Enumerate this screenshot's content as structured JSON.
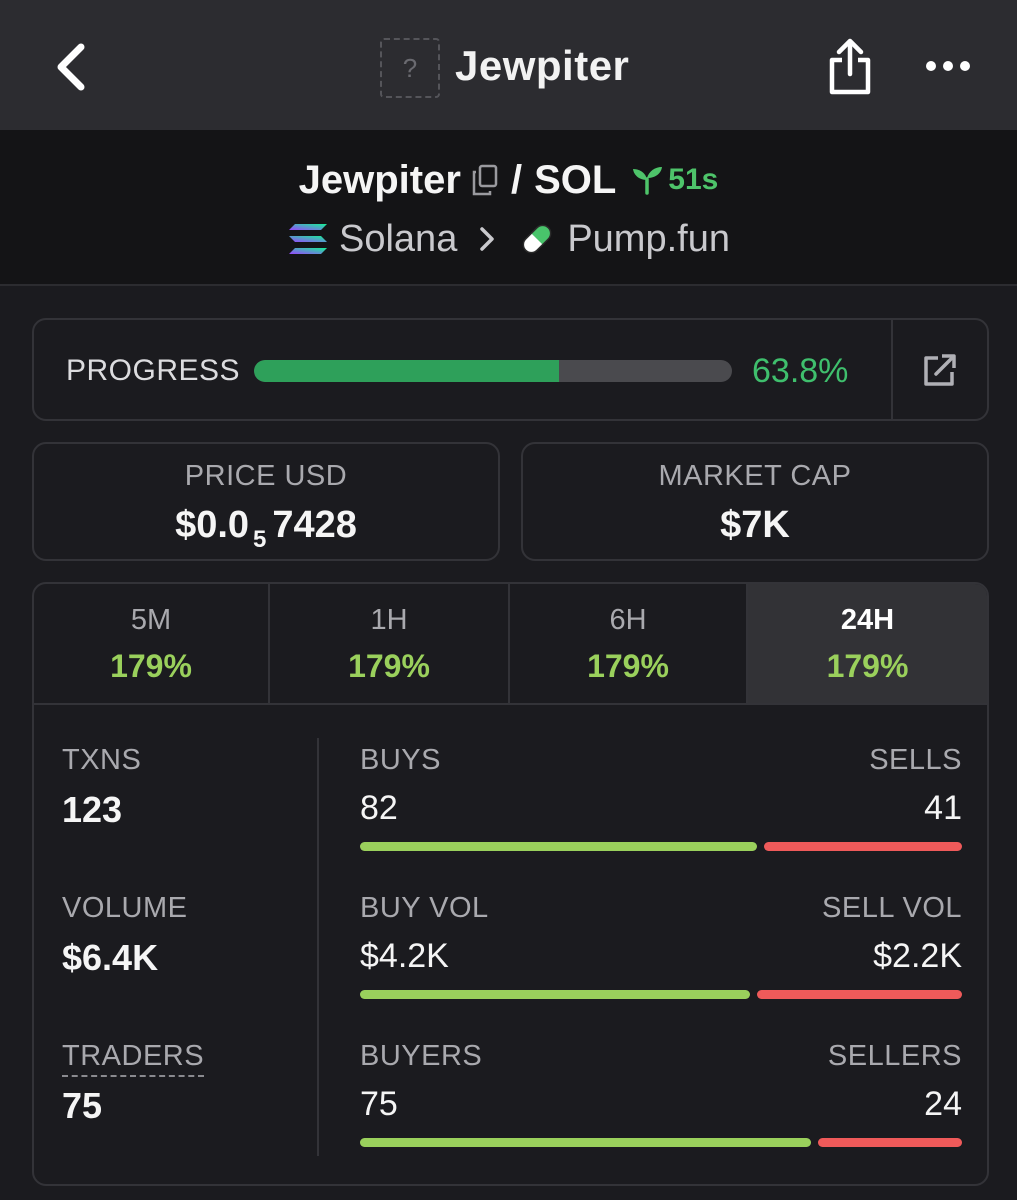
{
  "header": {
    "title": "Jewpiter",
    "thumb_placeholder": "?",
    "icons": {
      "back": "chevron-left-icon",
      "share": "share-icon",
      "more": "more-horizontal-icon"
    }
  },
  "pair": {
    "base": "Jewpiter",
    "separator": "/",
    "quote": "SOL",
    "age": "51s",
    "chain": "Solana",
    "dex": "Pump.fun"
  },
  "progress": {
    "label": "PROGRESS",
    "value_text": "63.8%",
    "percent": 63.8
  },
  "price": {
    "label": "PRICE USD",
    "prefix": "$0.0",
    "zeros": "5",
    "digits": "7428"
  },
  "market_cap": {
    "label": "MARKET CAP",
    "value": "$7K"
  },
  "tabs": [
    {
      "label": "5M",
      "value": "179%",
      "active": false
    },
    {
      "label": "1H",
      "value": "179%",
      "active": false
    },
    {
      "label": "6H",
      "value": "179%",
      "active": false
    },
    {
      "label": "24H",
      "value": "179%",
      "active": true
    }
  ],
  "stats": {
    "txns": {
      "label": "TXNS",
      "value": "123"
    },
    "volume": {
      "label": "VOLUME",
      "value": "$6.4K"
    },
    "traders": {
      "label": "TRADERS",
      "value": "75"
    },
    "buys": {
      "left_label": "BUYS",
      "left_value": "82",
      "right_label": "SELLS",
      "right_value": "41",
      "left_amount": 82,
      "right_amount": 41
    },
    "vol_split": {
      "left_label": "BUY VOL",
      "left_value": "$4.2K",
      "right_label": "SELL VOL",
      "right_value": "$2.2K",
      "left_amount": 4.2,
      "right_amount": 2.2
    },
    "traders_split": {
      "left_label": "BUYERS",
      "left_value": "75",
      "right_label": "SELLERS",
      "right_value": "24",
      "left_amount": 75,
      "right_amount": 24
    }
  },
  "colors": {
    "accent_green": "#3fbf6d",
    "buy": "#9ad05c",
    "sell": "#ef5a5a",
    "progress_fill": "#2ea05a"
  }
}
